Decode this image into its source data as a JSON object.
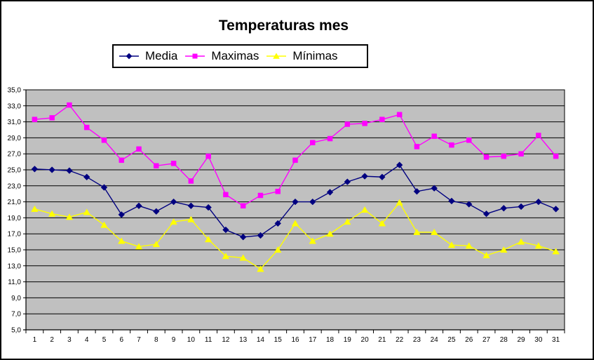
{
  "chart_data": {
    "type": "line",
    "title": "Temperaturas mes",
    "xlabel": "",
    "ylabel": "",
    "x_categories": [
      1,
      2,
      3,
      4,
      5,
      6,
      7,
      8,
      9,
      10,
      11,
      12,
      13,
      14,
      15,
      16,
      17,
      18,
      19,
      20,
      21,
      22,
      23,
      24,
      25,
      26,
      27,
      28,
      29,
      30,
      31
    ],
    "ylim": [
      5.0,
      35.0
    ],
    "y_tick_step": 2.0,
    "y_tick_labels": [
      "35,0",
      "33,0",
      "31,0",
      "29,0",
      "27,0",
      "25,0",
      "23,0",
      "21,0",
      "19,0",
      "17,0",
      "15,0",
      "13,0",
      "11,0",
      "9,0",
      "7,0",
      "5,0"
    ],
    "grid": true,
    "legend_position": "top",
    "plot_area_color": "#C0C0C0",
    "gridline_color": "#000000",
    "axis_color": "#000000",
    "series": [
      {
        "name": "Media",
        "color": "#000080",
        "marker": "diamond",
        "values": [
          25.1,
          25.0,
          24.9,
          24.1,
          22.8,
          19.4,
          20.5,
          19.8,
          21.0,
          20.5,
          20.3,
          17.5,
          16.6,
          16.8,
          18.3,
          21.0,
          21.0,
          22.2,
          23.5,
          24.2,
          24.1,
          25.6,
          22.3,
          22.7,
          21.1,
          20.7,
          19.5,
          20.2,
          20.4,
          21.0,
          20.1
        ]
      },
      {
        "name": "Maximas",
        "color": "#FF00FF",
        "marker": "square",
        "values": [
          31.3,
          31.5,
          33.1,
          30.3,
          28.7,
          26.2,
          27.6,
          25.5,
          25.8,
          23.6,
          26.7,
          21.9,
          20.5,
          21.8,
          22.3,
          26.2,
          28.4,
          28.9,
          30.7,
          30.8,
          31.3,
          31.9,
          27.9,
          29.2,
          28.1,
          28.7,
          26.6,
          26.7,
          27.0,
          29.3,
          26.7
        ]
      },
      {
        "name": "Mínimas",
        "color": "#FFFF00",
        "marker": "triangle",
        "values": [
          20.1,
          19.5,
          19.1,
          19.7,
          18.1,
          16.1,
          15.4,
          15.7,
          18.5,
          18.8,
          16.3,
          14.2,
          14.0,
          12.6,
          15.0,
          18.3,
          16.1,
          17.0,
          18.5,
          20.0,
          18.3,
          20.9,
          17.2,
          17.2,
          15.6,
          15.5,
          14.3,
          15.0,
          16.0,
          15.5,
          14.8
        ]
      }
    ]
  }
}
